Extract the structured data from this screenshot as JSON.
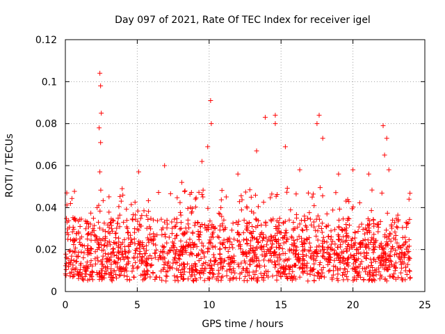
{
  "chart_data": {
    "type": "scatter",
    "title": "Day 097 of 2021, Rate Of TEC Index for receiver igel",
    "xlabel": "GPS time / hours",
    "ylabel": "ROTI / TECUs",
    "xlim": [
      0,
      25
    ],
    "ylim": [
      0,
      0.12
    ],
    "x_ticks": [
      0,
      5,
      10,
      15,
      20,
      25
    ],
    "x_tick_labels": [
      "0",
      "5",
      "10",
      "15",
      "20",
      "25"
    ],
    "y_ticks": [
      0,
      0.02,
      0.04,
      0.06,
      0.08,
      0.1,
      0.12
    ],
    "y_tick_labels": [
      "0",
      "0.02",
      "0.04",
      "0.06",
      "0.08",
      "0.1",
      "0.12"
    ],
    "grid": true,
    "marker": "+",
    "color": "#ff0000",
    "series": [
      {
        "name": "ROTI",
        "x_range_hours": [
          0,
          24
        ],
        "baseline_band": [
          0.005,
          0.025
        ],
        "typical_upper_envelope": 0.045,
        "spikes": [
          {
            "x": 0.1,
            "y": 0.047
          },
          {
            "x": 2.4,
            "y": 0.104
          },
          {
            "x": 2.45,
            "y": 0.098
          },
          {
            "x": 2.5,
            "y": 0.085
          },
          {
            "x": 2.35,
            "y": 0.078
          },
          {
            "x": 2.45,
            "y": 0.071
          },
          {
            "x": 2.4,
            "y": 0.057
          },
          {
            "x": 5.1,
            "y": 0.057
          },
          {
            "x": 6.9,
            "y": 0.06
          },
          {
            "x": 8.1,
            "y": 0.052
          },
          {
            "x": 9.5,
            "y": 0.062
          },
          {
            "x": 10.1,
            "y": 0.091
          },
          {
            "x": 10.15,
            "y": 0.08
          },
          {
            "x": 9.9,
            "y": 0.069
          },
          {
            "x": 12.0,
            "y": 0.056
          },
          {
            "x": 13.3,
            "y": 0.067
          },
          {
            "x": 13.9,
            "y": 0.083
          },
          {
            "x": 14.6,
            "y": 0.084
          },
          {
            "x": 14.6,
            "y": 0.08
          },
          {
            "x": 15.3,
            "y": 0.069
          },
          {
            "x": 16.3,
            "y": 0.058
          },
          {
            "x": 17.5,
            "y": 0.08
          },
          {
            "x": 17.65,
            "y": 0.084
          },
          {
            "x": 17.9,
            "y": 0.073
          },
          {
            "x": 19.0,
            "y": 0.056
          },
          {
            "x": 20.0,
            "y": 0.058
          },
          {
            "x": 21.1,
            "y": 0.056
          },
          {
            "x": 22.1,
            "y": 0.079
          },
          {
            "x": 22.35,
            "y": 0.073
          },
          {
            "x": 22.2,
            "y": 0.065
          },
          {
            "x": 22.5,
            "y": 0.058
          },
          {
            "x": 23.9,
            "y": 0.044
          }
        ]
      }
    ]
  }
}
